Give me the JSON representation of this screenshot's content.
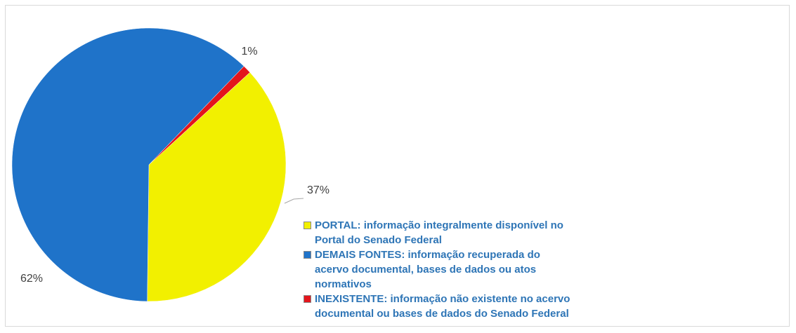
{
  "chart_data": {
    "type": "pie",
    "categories": [
      "PORTAL: informação integralmente disponível no Portal do Senado Federal",
      "DEMAIS FONTES: informação recuperada do acervo documental, bases de dados ou atos normativos",
      "INEXISTENTE: informação não existente no acervo documental ou bases de dados do Senado Federal"
    ],
    "values": [
      37,
      62,
      1
    ],
    "value_labels": [
      "37%",
      "62%",
      "1%"
    ],
    "colors": [
      "#f2f000",
      "#1f73c9",
      "#e3151c"
    ],
    "legend": "right"
  }
}
